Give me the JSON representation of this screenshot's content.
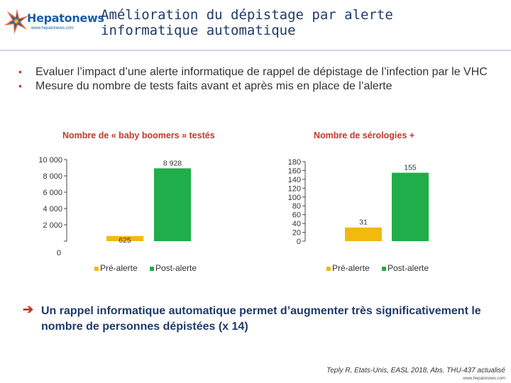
{
  "logo": {
    "name": "Hepatonews",
    "url": "www.hepatonews.com"
  },
  "title": "Amélioration du dépistage par alerte informatique automatique",
  "bullets": [
    "Evaluer l’impact d’une alerte informatique de rappel de dépistage de l’infection par le VHC",
    "Mesure du nombre de tests faits avant et après mis en place de l’alerte"
  ],
  "colors": {
    "pre": "#f2b90f",
    "post": "#1fae4a",
    "accent": "#c0392b",
    "title": "#1f3a6a"
  },
  "chart_data": [
    {
      "type": "bar",
      "title": "Nombre de « baby boomers » testés",
      "categories": [
        "Pré-alerte",
        "Post-alerte"
      ],
      "series": [
        {
          "name": "Pré-alerte",
          "values": [
            625,
            null
          ]
        },
        {
          "name": "Post-alerte",
          "values": [
            null,
            8928
          ]
        }
      ],
      "values": [
        625,
        8928
      ],
      "data_labels": [
        "625",
        "8 928"
      ],
      "yticks": [
        "0",
        "2 000",
        "4 000",
        "6 000",
        "8 000",
        "10 000"
      ],
      "ytick_values": [
        0,
        2000,
        4000,
        6000,
        8000,
        10000
      ],
      "ylim": [
        0,
        10000
      ],
      "legend": [
        "Pré-alerte",
        "Post-alerte"
      ],
      "legend_position": "bottom",
      "grid": false
    },
    {
      "type": "bar",
      "title": "Nombre de sérologies +",
      "categories": [
        "Pré-alerte",
        "Post-alerte"
      ],
      "series": [
        {
          "name": "Pré-alerte",
          "values": [
            31,
            null
          ]
        },
        {
          "name": "Post-alerte",
          "values": [
            null,
            155
          ]
        }
      ],
      "values": [
        31,
        155
      ],
      "data_labels": [
        "31",
        "155"
      ],
      "yticks": [
        "0",
        "20",
        "40",
        "60",
        "80",
        "100",
        "120",
        "140",
        "160",
        "180"
      ],
      "ytick_values": [
        0,
        20,
        40,
        60,
        80,
        100,
        120,
        140,
        160,
        180
      ],
      "ylim": [
        0,
        180
      ],
      "legend": [
        "Pré-alerte",
        "Post-alerte"
      ],
      "legend_position": "bottom",
      "grid": false
    }
  ],
  "conclusion": "Un rappel informatique automatique permet d’augmenter très significativement le nombre de personnes dépistées (x 14)",
  "reference": "Teply R, Etats-Unis, EASL 2018, Abs. THU-437 actualisé",
  "footer_url": "www.hepatonews.com"
}
